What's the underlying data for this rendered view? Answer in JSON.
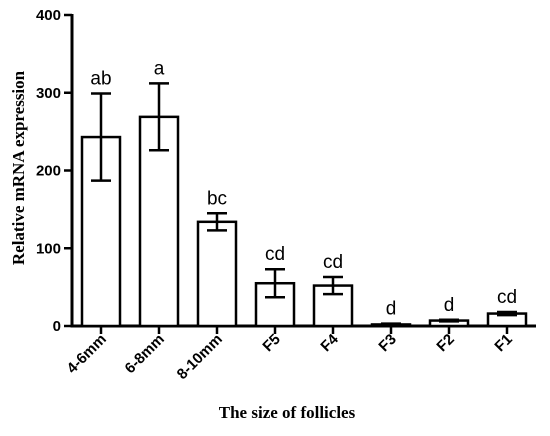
{
  "chart_data": {
    "type": "bar",
    "title": "",
    "xlabel": "The size of follicles",
    "ylabel": "Relative mRNA expression",
    "ylim": [
      0,
      400
    ],
    "yticks": [
      0,
      100,
      200,
      300,
      400
    ],
    "grid": false,
    "categories": [
      "4-6mm",
      "6-8mm",
      "8-10mm",
      "F5",
      "F4",
      "F3",
      "F2",
      "F1"
    ],
    "values": [
      243,
      269,
      134,
      55,
      52,
      2,
      7,
      16
    ],
    "errors": [
      56,
      43,
      11,
      18,
      11,
      1,
      1,
      2
    ],
    "significance": [
      "ab",
      "a",
      "bc",
      "cd",
      "cd",
      "d",
      "d",
      "cd"
    ],
    "colors": {
      "bar_fill": "#ffffff",
      "bar_stroke": "#000000"
    }
  }
}
